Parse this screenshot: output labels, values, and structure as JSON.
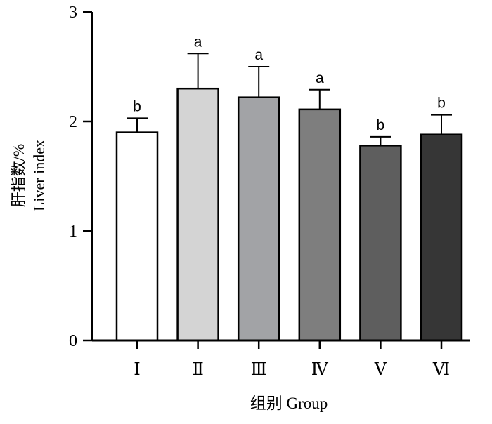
{
  "chart_data": {
    "type": "bar",
    "categories": [
      "Ⅰ",
      "Ⅱ",
      "Ⅲ",
      "Ⅳ",
      "Ⅴ",
      "Ⅵ"
    ],
    "values": [
      1.9,
      2.3,
      2.22,
      2.11,
      1.78,
      1.88
    ],
    "errors": [
      0.13,
      0.32,
      0.28,
      0.18,
      0.08,
      0.18
    ],
    "significance": [
      "b",
      "a",
      "a",
      "a",
      "b",
      "b"
    ],
    "bar_colors": [
      "#ffffff",
      "#d4d4d4",
      "#a2a3a6",
      "#7e7e7e",
      "#5e5e5e",
      "#363636"
    ],
    "ylim": [
      0,
      3
    ],
    "yticks": [
      0,
      1,
      2,
      3
    ],
    "ylabel_cn": "肝指数/%",
    "ylabel_en": "Liver index",
    "xlabel": "组别 Group",
    "grid": false
  }
}
